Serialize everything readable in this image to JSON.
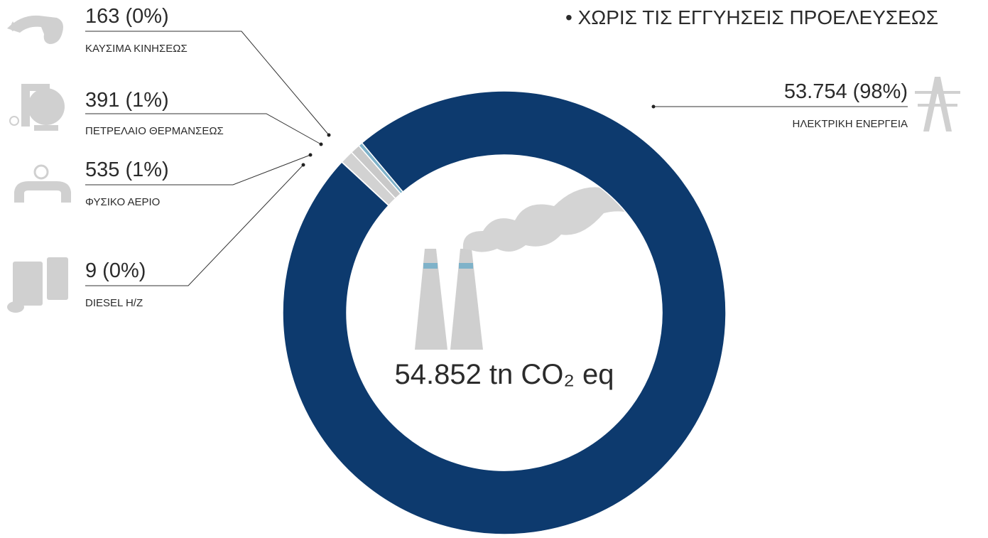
{
  "chart_data": {
    "type": "pie",
    "donut": true,
    "subtitle": "• ΧΩΡΙΣ ΤΙΣ ΕΓΓΥΗΣΕΙΣ ΠΡΟΕΛΕΥΣΕΩΣ",
    "center_label": "54.852 tn CO₂ eq",
    "categories": [
      "ΚΑΥΣΙΜΑ ΚΙΝΗΣΕΩΣ",
      "ΠΕΤΡΕΛΑΙΟ ΘΕΡΜΑΝΣΕΩΣ",
      "ΦΥΣΙΚΟ ΑΕΡΙΟ",
      "DIESEL H/Z",
      "ΗΛΕΚΤΡΙΚΗ ΕΝΕΡΓΕΙΑ"
    ],
    "values": [
      163,
      391,
      535,
      9,
      53754
    ],
    "value_labels": [
      "163 (0%)",
      "391 (1%)",
      "535 (1%)",
      "9 (0%)",
      "53.754 (98%)"
    ],
    "colors": [
      "#7fb2c9",
      "#c9c9c9",
      "#d2d2d2",
      "#dadada",
      "#0d3a6e"
    ]
  }
}
